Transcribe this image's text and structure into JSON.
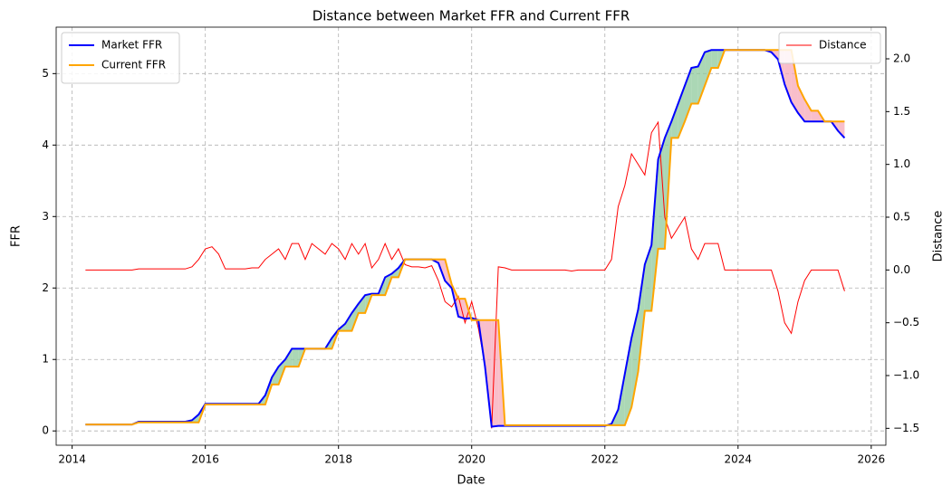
{
  "chart_data": {
    "type": "line",
    "title": "Distance between Market FFR and Current FFR",
    "x_label": "Date",
    "y_label": "FFR",
    "y2_label": "Distance",
    "x": [
      2014.2,
      2014.3,
      2014.4,
      2014.5,
      2014.6,
      2014.7,
      2014.8,
      2014.9,
      2015.0,
      2015.1,
      2015.2,
      2015.3,
      2015.4,
      2015.5,
      2015.6,
      2015.7,
      2015.8,
      2015.9,
      2016.0,
      2016.1,
      2016.2,
      2016.3,
      2016.4,
      2016.5,
      2016.6,
      2016.7,
      2016.8,
      2016.9,
      2017.0,
      2017.1,
      2017.2,
      2017.3,
      2017.4,
      2017.5,
      2017.6,
      2017.7,
      2017.8,
      2017.9,
      2018.0,
      2018.1,
      2018.2,
      2018.3,
      2018.4,
      2018.5,
      2018.6,
      2018.7,
      2018.8,
      2018.9,
      2019.0,
      2019.1,
      2019.2,
      2019.3,
      2019.4,
      2019.5,
      2019.6,
      2019.7,
      2019.8,
      2019.9,
      2020.0,
      2020.1,
      2020.2,
      2020.3,
      2020.4,
      2020.5,
      2020.6,
      2020.7,
      2020.8,
      2020.9,
      2021.0,
      2021.1,
      2021.2,
      2021.3,
      2021.4,
      2021.5,
      2021.6,
      2021.7,
      2021.8,
      2021.9,
      2022.0,
      2022.1,
      2022.2,
      2022.3,
      2022.4,
      2022.5,
      2022.6,
      2022.7,
      2022.8,
      2022.9,
      2023.0,
      2023.1,
      2023.2,
      2023.3,
      2023.4,
      2023.5,
      2023.6,
      2023.7,
      2023.8,
      2023.9,
      2024.0,
      2024.1,
      2024.2,
      2024.3,
      2024.4,
      2024.5,
      2024.6,
      2024.7,
      2024.8,
      2024.9,
      2025.0,
      2025.1,
      2025.2,
      2025.3,
      2025.4,
      2025.5,
      2025.6
    ],
    "series": [
      {
        "name": "Market FFR",
        "color": "#0000ff",
        "values": [
          0.09,
          0.09,
          0.09,
          0.09,
          0.09,
          0.09,
          0.09,
          0.09,
          0.13,
          0.13,
          0.13,
          0.13,
          0.13,
          0.13,
          0.13,
          0.13,
          0.15,
          0.23,
          0.38,
          0.38,
          0.38,
          0.38,
          0.38,
          0.38,
          0.38,
          0.38,
          0.38,
          0.5,
          0.75,
          0.9,
          1.0,
          1.15,
          1.15,
          1.15,
          1.15,
          1.15,
          1.15,
          1.3,
          1.42,
          1.5,
          1.65,
          1.78,
          1.9,
          1.92,
          1.92,
          2.15,
          2.2,
          2.28,
          2.4,
          2.4,
          2.4,
          2.4,
          2.4,
          2.35,
          2.1,
          2.0,
          1.6,
          1.57,
          1.58,
          1.55,
          0.9,
          0.06,
          0.07,
          0.07,
          0.07,
          0.07,
          0.07,
          0.07,
          0.07,
          0.07,
          0.07,
          0.07,
          0.07,
          0.07,
          0.07,
          0.07,
          0.07,
          0.07,
          0.07,
          0.1,
          0.3,
          0.8,
          1.3,
          1.7,
          2.33,
          2.6,
          3.8,
          4.1,
          4.33,
          4.58,
          4.83,
          5.08,
          5.1,
          5.3,
          5.33,
          5.33,
          5.33,
          5.33,
          5.33,
          5.33,
          5.33,
          5.33,
          5.33,
          5.3,
          5.2,
          4.85,
          4.6,
          4.45,
          4.33,
          4.33,
          4.33,
          4.33,
          4.33,
          4.2,
          4.1
        ]
      },
      {
        "name": "Current FFR",
        "color": "#ffa500",
        "values": [
          0.09,
          0.09,
          0.09,
          0.09,
          0.09,
          0.09,
          0.09,
          0.09,
          0.12,
          0.12,
          0.12,
          0.12,
          0.12,
          0.12,
          0.12,
          0.12,
          0.12,
          0.12,
          0.37,
          0.37,
          0.37,
          0.37,
          0.37,
          0.37,
          0.37,
          0.37,
          0.37,
          0.37,
          0.65,
          0.65,
          0.9,
          0.9,
          0.9,
          1.15,
          1.15,
          1.15,
          1.15,
          1.15,
          1.4,
          1.4,
          1.4,
          1.65,
          1.65,
          1.9,
          1.9,
          1.9,
          2.15,
          2.15,
          2.4,
          2.4,
          2.4,
          2.4,
          2.4,
          2.4,
          2.4,
          2.05,
          1.85,
          1.85,
          1.55,
          1.55,
          1.55,
          1.55,
          1.55,
          0.08,
          0.08,
          0.08,
          0.08,
          0.08,
          0.08,
          0.08,
          0.08,
          0.08,
          0.08,
          0.08,
          0.08,
          0.08,
          0.08,
          0.08,
          0.08,
          0.08,
          0.08,
          0.08,
          0.33,
          0.83,
          1.68,
          1.68,
          2.55,
          2.55,
          4.1,
          4.1,
          4.33,
          4.58,
          4.58,
          4.83,
          5.08,
          5.08,
          5.33,
          5.33,
          5.33,
          5.33,
          5.33,
          5.33,
          5.33,
          5.33,
          5.33,
          5.33,
          5.33,
          4.83,
          4.64,
          4.48,
          4.48,
          4.33,
          4.33,
          4.33,
          4.33
        ]
      },
      {
        "name": "Distance",
        "color": "#ff0000",
        "axis": "y2",
        "values": [
          0,
          0,
          0,
          0,
          0,
          0,
          0,
          0,
          0.01,
          0.01,
          0.01,
          0.01,
          0.01,
          0.01,
          0.01,
          0.01,
          0.03,
          0.1,
          0.2,
          0.22,
          0.15,
          0.01,
          0.01,
          0.01,
          0.01,
          0.02,
          0.02,
          0.1,
          0.15,
          0.2,
          0.1,
          0.25,
          0.25,
          0.1,
          0.25,
          0.2,
          0.15,
          0.25,
          0.2,
          0.1,
          0.25,
          0.15,
          0.25,
          0.02,
          0.1,
          0.25,
          0.1,
          0.2,
          0.05,
          0.03,
          0.03,
          0.02,
          0.04,
          -0.1,
          -0.3,
          -0.35,
          -0.25,
          -0.5,
          -0.3,
          -0.55,
          -0.9,
          -1.5,
          0.03,
          0.02,
          0,
          0,
          0,
          0,
          0,
          0,
          0,
          0,
          0,
          -0.01,
          0,
          0,
          0,
          0,
          0,
          0.1,
          0.6,
          0.8,
          1.1,
          1.0,
          0.9,
          1.3,
          1.4,
          0.5,
          0.3,
          0.4,
          0.5,
          0.2,
          0.1,
          0.25,
          0.25,
          0.25,
          0,
          0,
          0,
          0,
          0,
          0,
          0,
          0,
          -0.2,
          -0.5,
          -0.6,
          -0.3,
          -0.1,
          0,
          0,
          0,
          0,
          0,
          -0.2
        ]
      }
    ],
    "fill_above_color": "#8fc99c",
    "fill_below_color": "#f7a8b8",
    "xlim": [
      2013.76,
      2026.22
    ],
    "xticks": [
      2014,
      2016,
      2018,
      2020,
      2022,
      2024,
      2026
    ],
    "ylim": [
      -0.2,
      5.65
    ],
    "yticks": [
      0,
      1,
      2,
      3,
      4,
      5
    ],
    "y2lim": [
      -1.66,
      2.3
    ],
    "y2ticks": [
      {
        "value": -1.5,
        "label": "−1.5"
      },
      {
        "value": -1,
        "label": "−1.0"
      },
      {
        "value": -0.5,
        "label": "−0.5"
      },
      {
        "value": 0,
        "label": "0.0"
      },
      {
        "value": 0.5,
        "label": "0.5"
      },
      {
        "value": 1,
        "label": "1.0"
      },
      1.5,
      {
        "value": 2,
        "label": "2.0"
      }
    ],
    "grid": true,
    "legend": "upper left",
    "y2_legend": "upper right"
  }
}
